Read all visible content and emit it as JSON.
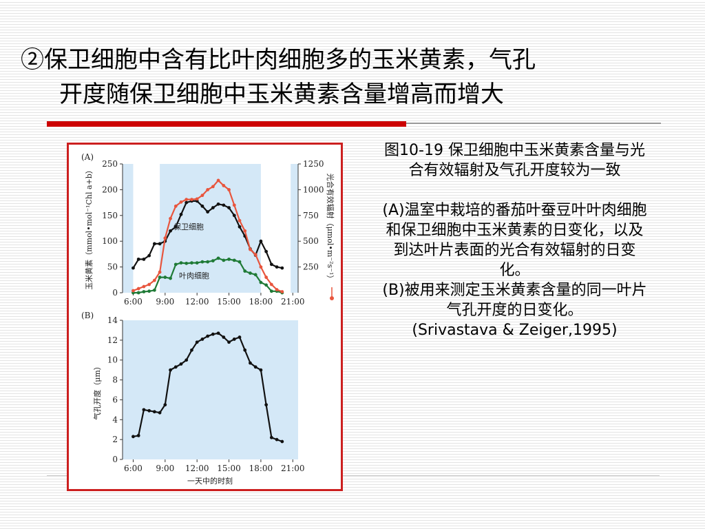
{
  "slide": {
    "title_line1": "②保卫细胞中含有比叶肉细胞多的玉米黄素，气孔",
    "title_line2": "开度随保卫细胞中玉米黄素含量增高而增大",
    "accent_color": "#cc0000"
  },
  "caption": {
    "heading": "图10-19  保卫细胞中玉米黄素含量与光合有效辐射及气孔开度较为一致",
    "part_a": "(A)温室中栽培的番茄叶蚕豆叶叶肉细胞和保卫细胞中玉米黄素的日变化，以及到达叶片表面的光合有效辐射的日变化。",
    "part_b": "(B)被用来测定玉米黄素含量的同一叶片气孔开度的日变化。",
    "citation": "(Srivastava  &  Zeiger,1995)"
  },
  "figure": {
    "panel_a_label": "(A)",
    "panel_b_label": "(B)",
    "label_guard_cell": "保卫细胞",
    "label_mesophyll": "叶肉细胞",
    "xlabel_b": "一天中的时刻",
    "x_ticks": [
      "6:00",
      "9:00",
      "12:00",
      "15:00",
      "18:00",
      "21:00"
    ],
    "ylabel_a_left": "玉米黄素（mmol•mol⁻¹Chl a+b）",
    "ylabel_a_right": "光合有效辐射（μmol•m⁻²s⁻¹）",
    "ylabel_b": "气孔开度（μm）",
    "y_ticks_a_left": [
      "0",
      "50",
      "100",
      "150",
      "200",
      "250"
    ],
    "y_ticks_a_right": [
      "250",
      "500",
      "750",
      "1000",
      "1250"
    ],
    "y_ticks_b": [
      "0",
      "2",
      "4",
      "6",
      "8",
      "10",
      "12",
      "14"
    ],
    "colors": {
      "guard": "#111111",
      "mesophyll": "#1f7a36",
      "par": "#e8553d",
      "shade": "#d4e8f7"
    }
  },
  "chart_data": [
    {
      "type": "line",
      "panel": "A",
      "xlabel": "",
      "ylabel": "玉米黄素（mmol•mol⁻¹Chl a+b）",
      "y2label": "光合有效辐射（μmol•m⁻²s⁻¹）",
      "xlim": [
        5,
        21.5
      ],
      "ylim": [
        0,
        250
      ],
      "y2lim": [
        0,
        1250
      ],
      "shaded_x_ranges": [
        [
          5,
          6
        ],
        [
          8.5,
          18
        ],
        [
          20.8,
          21.5
        ]
      ],
      "series": [
        {
          "name": "保卫细胞",
          "axis": "left",
          "x": [
            6,
            6.5,
            7,
            7.5,
            8,
            8.5,
            9,
            9.5,
            10,
            10.5,
            11,
            11.5,
            12,
            12.5,
            13,
            13.5,
            14,
            14.5,
            15,
            15.5,
            16,
            16.5,
            17,
            17.5,
            18,
            18.5,
            19,
            19.5,
            20
          ],
          "y": [
            48,
            65,
            65,
            72,
            95,
            95,
            100,
            120,
            128,
            152,
            175,
            178,
            178,
            168,
            157,
            165,
            172,
            170,
            165,
            150,
            128,
            110,
            85,
            73,
            100,
            80,
            55,
            50,
            48
          ]
        },
        {
          "name": "叶肉细胞",
          "axis": "left",
          "x": [
            6,
            6.5,
            7,
            7.5,
            8,
            8.5,
            9,
            9.5,
            10,
            10.5,
            11,
            11.5,
            12,
            12.5,
            13,
            13.5,
            14,
            14.5,
            15,
            15.5,
            16,
            16.5,
            17,
            17.5,
            18,
            18.5,
            19,
            19.5,
            20
          ],
          "y": [
            0,
            0,
            2,
            3,
            5,
            30,
            30,
            28,
            55,
            58,
            57,
            58,
            58,
            60,
            60,
            62,
            67,
            63,
            65,
            63,
            60,
            42,
            38,
            35,
            20,
            15,
            3,
            3,
            0
          ]
        },
        {
          "name": "光合有效辐射",
          "axis": "right",
          "x": [
            6,
            6.5,
            7,
            7.5,
            8,
            8.5,
            9,
            9.5,
            10,
            10.5,
            11,
            11.5,
            12,
            12.5,
            13,
            13.5,
            14,
            14.5,
            15,
            15.5,
            16,
            16.5,
            17,
            17.5,
            18,
            18.5,
            19,
            19.5,
            20
          ],
          "y": [
            20,
            40,
            60,
            80,
            120,
            200,
            530,
            720,
            840,
            880,
            905,
            905,
            910,
            945,
            1000,
            1030,
            1090,
            1040,
            1000,
            850,
            700,
            600,
            420,
            370,
            250,
            150,
            80,
            30,
            10
          ]
        }
      ]
    },
    {
      "type": "line",
      "panel": "B",
      "xlabel": "一天中的时刻",
      "ylabel": "气孔开度（μm）",
      "xlim": [
        5,
        21.5
      ],
      "ylim": [
        0,
        14
      ],
      "shaded_x_ranges": [
        [
          5,
          21.5
        ]
      ],
      "series": [
        {
          "name": "",
          "x": [
            6,
            6.5,
            7,
            7.5,
            8,
            8.5,
            9,
            9.5,
            10,
            10.5,
            11,
            11.5,
            12,
            12.5,
            13,
            13.5,
            14,
            14.5,
            15,
            15.5,
            16,
            16.5,
            17,
            17.5,
            18,
            18.5,
            19,
            19.5,
            20
          ],
          "y": [
            2.3,
            2.4,
            5.0,
            4.9,
            4.8,
            4.7,
            5.5,
            9.0,
            9.3,
            9.6,
            10.0,
            11.0,
            11.8,
            12.1,
            12.4,
            12.6,
            12.7,
            12.3,
            11.8,
            12.1,
            12.3,
            11.0,
            9.7,
            9.3,
            9.0,
            5.5,
            2.2,
            2.0,
            1.8
          ]
        }
      ]
    }
  ]
}
